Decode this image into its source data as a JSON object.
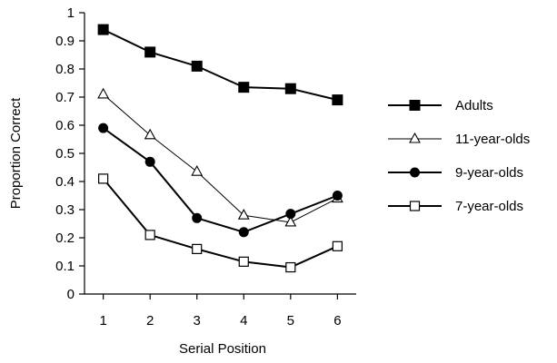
{
  "chart_data": {
    "type": "line",
    "title": "",
    "xlabel": "Serial Position",
    "ylabel": "Proportion Correct",
    "categories": [
      "1",
      "2",
      "3",
      "4",
      "5",
      "6"
    ],
    "x": [
      1,
      2,
      3,
      4,
      5,
      6
    ],
    "xlim": [
      0.6,
      6.4
    ],
    "ylim": [
      0,
      1
    ],
    "y_ticks": [
      "0",
      "0.1",
      "0.2",
      "0.3",
      "0.4",
      "0.5",
      "0.6",
      "0.7",
      "0.8",
      "0.9",
      "1"
    ],
    "legend_position": "right",
    "grid": false,
    "series": [
      {
        "name": "Adults",
        "values": [
          0.94,
          0.86,
          0.81,
          0.735,
          0.73,
          0.69
        ],
        "marker": "filled-square",
        "line_style": "solid",
        "line_width": "heavy"
      },
      {
        "name": "11-year-olds",
        "values": [
          0.71,
          0.565,
          0.435,
          0.28,
          0.255,
          0.34
        ],
        "marker": "open-triangle",
        "line_style": "solid",
        "line_width": "thin"
      },
      {
        "name": "9-year-olds",
        "values": [
          0.59,
          0.47,
          0.27,
          0.22,
          0.285,
          0.35
        ],
        "marker": "filled-circle",
        "line_style": "solid",
        "line_width": "heavy"
      },
      {
        "name": "7-year-olds",
        "values": [
          0.41,
          0.21,
          0.16,
          0.115,
          0.095,
          0.17
        ],
        "marker": "open-square",
        "line_style": "solid",
        "line_width": "heavy"
      }
    ]
  },
  "colors": {
    "ink": "#000000",
    "background": "#ffffff"
  }
}
